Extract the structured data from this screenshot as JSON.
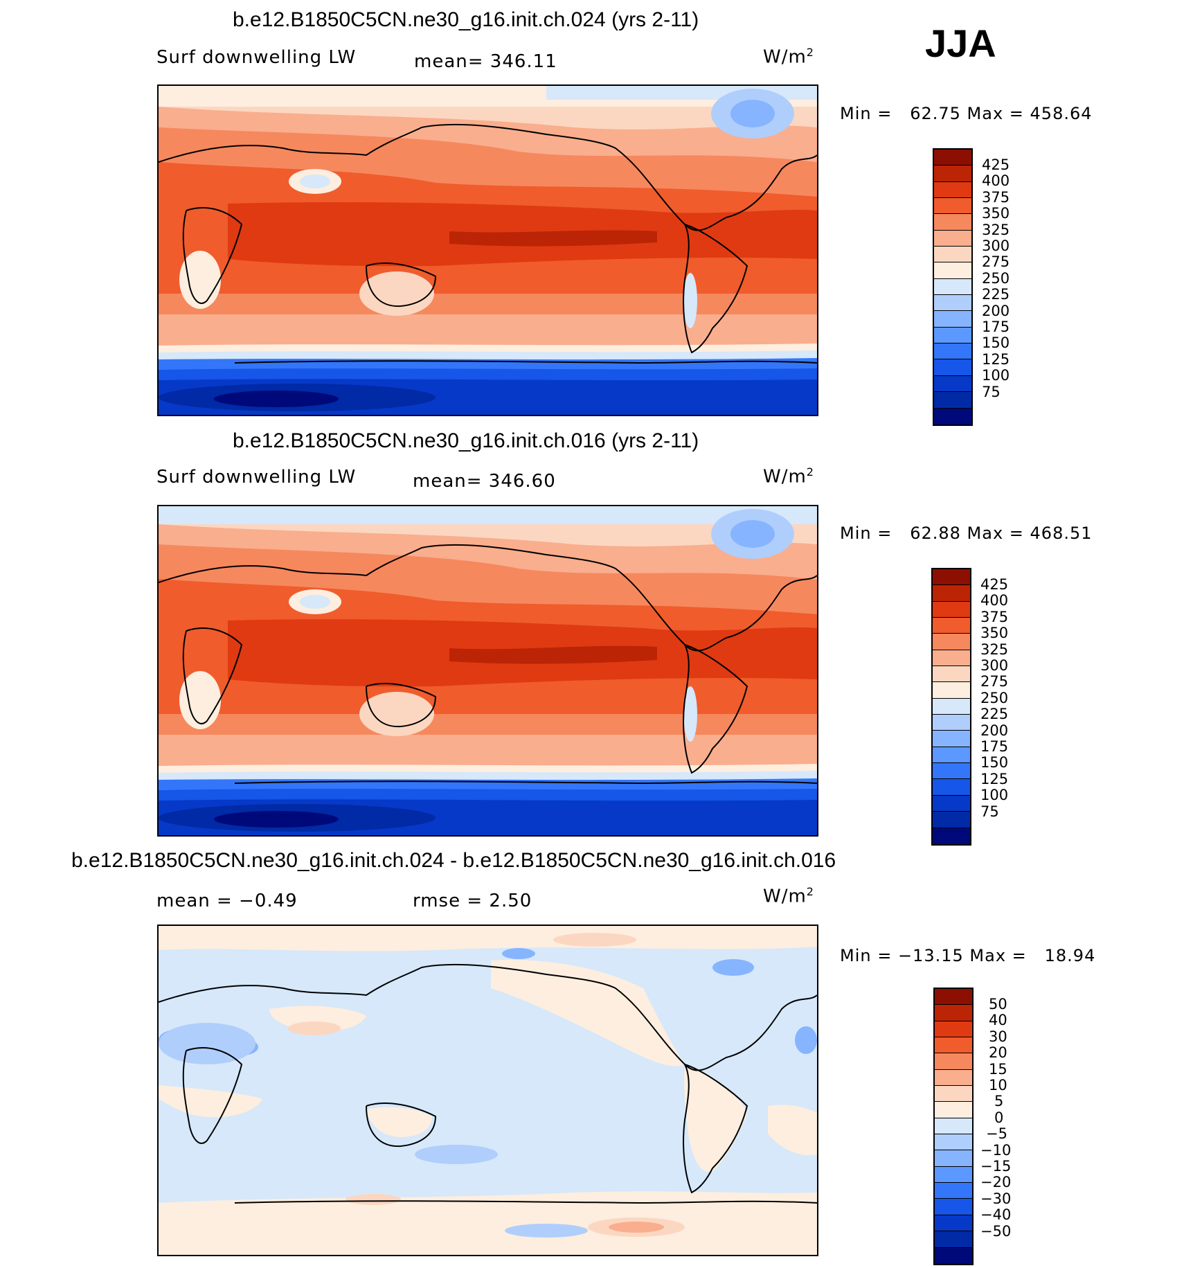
{
  "season": "JJA",
  "colors": {
    "abs_scale": [
      "#00097a",
      "#002aa6",
      "#0639c8",
      "#1656e8",
      "#3376f9",
      "#5b98ff",
      "#86b4ff",
      "#b0cefb",
      "#d6e8fa",
      "#fdeedf",
      "#fbd7c1",
      "#f9ae8e",
      "#f6885e",
      "#f05c2c",
      "#e03a12",
      "#bb2405",
      "#8c0f01"
    ],
    "diff_scale": [
      "#00097a",
      "#002aa6",
      "#0639c8",
      "#1656e8",
      "#3376f9",
      "#5b98ff",
      "#86b4ff",
      "#b0cefb",
      "#d6e8fa",
      "#fdeedf",
      "#fbd7c1",
      "#f9ae8e",
      "#f6885e",
      "#f05c2c",
      "#e03a12",
      "#bb2405",
      "#8c0f01"
    ]
  },
  "panels": [
    {
      "title": "b.e12.B1850C5CN.ne30_g16.init.ch.024 (yrs 2-11)",
      "left_label": "Surf downwelling LW",
      "center_label": "mean= 346.11",
      "unit": "W/m",
      "unit_exp": "2",
      "min_max": "Min =   62.75 Max = 458.64",
      "ticks": [
        "425",
        "400",
        "375",
        "350",
        "325",
        "300",
        "275",
        "250",
        "225",
        "200",
        "175",
        "150",
        "125",
        "100",
        "75"
      ]
    },
    {
      "title": "b.e12.B1850C5CN.ne30_g16.init.ch.016 (yrs 2-11)",
      "left_label": "Surf downwelling LW",
      "center_label": "mean= 346.60",
      "unit": "W/m",
      "unit_exp": "2",
      "min_max": "Min =   62.88 Max = 468.51",
      "ticks": [
        "425",
        "400",
        "375",
        "350",
        "325",
        "300",
        "275",
        "250",
        "225",
        "200",
        "175",
        "150",
        "125",
        "100",
        "75"
      ]
    },
    {
      "title": "b.e12.B1850C5CN.ne30_g16.init.ch.024 - b.e12.B1850C5CN.ne30_g16.init.ch.016",
      "left_label": "mean =   −0.49",
      "center_label": "rmse =    2.50",
      "unit": "W/m",
      "unit_exp": "2",
      "min_max": "Min = −13.15 Max =   18.94",
      "ticks": [
        "50",
        "40",
        "30",
        "20",
        "15",
        "10",
        "5",
        "0",
        "−5",
        "−10",
        "−15",
        "−20",
        "−30",
        "−40",
        "−50"
      ]
    }
  ]
}
